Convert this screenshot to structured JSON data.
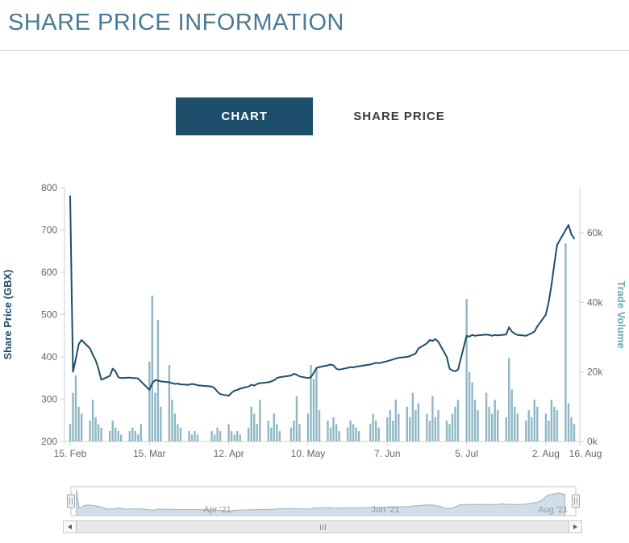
{
  "page": {
    "title": "SHARE PRICE INFORMATION"
  },
  "tabs": [
    {
      "label": "CHART",
      "active": true
    },
    {
      "label": "SHARE PRICE",
      "active": false
    }
  ],
  "colors": {
    "title": "#4a7a96",
    "accent_navy": "#1d4e6c",
    "bar_teal": "#8fb8c4",
    "axis_gray": "#cbd0d4",
    "tick_text": "#666666"
  },
  "chart_data": {
    "type": "line+bar",
    "title": "",
    "x_axis": {
      "range": [
        "2021-02-13",
        "2021-08-14"
      ],
      "ticks": [
        {
          "label": "15. Feb",
          "date": "2021-02-15"
        },
        {
          "label": "15. Mar",
          "date": "2021-03-15"
        },
        {
          "label": "12. Apr",
          "date": "2021-04-12"
        },
        {
          "label": "10. May",
          "date": "2021-05-10"
        },
        {
          "label": "7. Jun",
          "date": "2021-06-07"
        },
        {
          "label": "5. Jul",
          "date": "2021-07-05"
        },
        {
          "label": "2. Aug",
          "date": "2021-08-02"
        },
        {
          "label": "16. Aug",
          "date": "2021-08-16"
        }
      ]
    },
    "y_axis_left": {
      "title": "Share Price (GBX)",
      "min": 200,
      "max": 800,
      "ticks": [
        200,
        300,
        400,
        500,
        600,
        700,
        800
      ],
      "color": "#1d4e6c"
    },
    "y_axis_right": {
      "title": "Trade Volume",
      "min": 0,
      "max": 73,
      "ticks": [
        {
          "label": "0k",
          "value": 0
        },
        {
          "label": "20k",
          "value": 20
        },
        {
          "label": "40k",
          "value": 40
        },
        {
          "label": "60k",
          "value": 60
        }
      ],
      "color": "#6fa7b8"
    },
    "dates": [
      "2021-02-15",
      "2021-02-16",
      "2021-02-17",
      "2021-02-18",
      "2021-02-19",
      "2021-02-22",
      "2021-02-23",
      "2021-02-24",
      "2021-02-25",
      "2021-02-26",
      "2021-03-01",
      "2021-03-02",
      "2021-03-03",
      "2021-03-04",
      "2021-03-05",
      "2021-03-08",
      "2021-03-09",
      "2021-03-10",
      "2021-03-11",
      "2021-03-12",
      "2021-03-15",
      "2021-03-16",
      "2021-03-17",
      "2021-03-18",
      "2021-03-19",
      "2021-03-22",
      "2021-03-23",
      "2021-03-24",
      "2021-03-25",
      "2021-03-26",
      "2021-03-29",
      "2021-03-30",
      "2021-03-31",
      "2021-04-01",
      "2021-04-06",
      "2021-04-07",
      "2021-04-08",
      "2021-04-09",
      "2021-04-12",
      "2021-04-13",
      "2021-04-14",
      "2021-04-15",
      "2021-04-16",
      "2021-04-19",
      "2021-04-20",
      "2021-04-21",
      "2021-04-22",
      "2021-04-23",
      "2021-04-26",
      "2021-04-27",
      "2021-04-28",
      "2021-04-29",
      "2021-04-30",
      "2021-05-04",
      "2021-05-05",
      "2021-05-06",
      "2021-05-07",
      "2021-05-10",
      "2021-05-11",
      "2021-05-12",
      "2021-05-13",
      "2021-05-14",
      "2021-05-17",
      "2021-05-18",
      "2021-05-19",
      "2021-05-20",
      "2021-05-21",
      "2021-05-24",
      "2021-05-25",
      "2021-05-26",
      "2021-05-27",
      "2021-05-28",
      "2021-06-01",
      "2021-06-02",
      "2021-06-03",
      "2021-06-04",
      "2021-06-07",
      "2021-06-08",
      "2021-06-09",
      "2021-06-10",
      "2021-06-11",
      "2021-06-14",
      "2021-06-15",
      "2021-06-16",
      "2021-06-17",
      "2021-06-18",
      "2021-06-21",
      "2021-06-22",
      "2021-06-23",
      "2021-06-24",
      "2021-06-25",
      "2021-06-28",
      "2021-06-29",
      "2021-06-30",
      "2021-07-01",
      "2021-07-02",
      "2021-07-05",
      "2021-07-06",
      "2021-07-07",
      "2021-07-08",
      "2021-07-09",
      "2021-07-12",
      "2021-07-13",
      "2021-07-14",
      "2021-07-15",
      "2021-07-16",
      "2021-07-19",
      "2021-07-20",
      "2021-07-21",
      "2021-07-22",
      "2021-07-23",
      "2021-07-26",
      "2021-07-27",
      "2021-07-28",
      "2021-07-29",
      "2021-07-30",
      "2021-08-02",
      "2021-08-03",
      "2021-08-04",
      "2021-08-05",
      "2021-08-06",
      "2021-08-09",
      "2021-08-10",
      "2021-08-11",
      "2021-08-12"
    ],
    "series": [
      {
        "name": "Share Price (GBX)",
        "type": "line",
        "color": "#1d4e6c",
        "values": [
          780,
          365,
          395,
          430,
          440,
          420,
          405,
          392,
          372,
          346,
          355,
          372,
          366,
          352,
          350,
          351,
          350,
          350,
          349,
          342,
          322,
          338,
          345,
          344,
          342,
          340,
          338,
          336,
          337,
          335,
          334,
          336,
          335,
          333,
          330,
          326,
          318,
          312,
          308,
          315,
          320,
          322,
          325,
          330,
          334,
          332,
          336,
          338,
          340,
          342,
          345,
          350,
          352,
          356,
          360,
          358,
          354,
          350,
          352,
          362,
          374,
          376,
          380,
          382,
          380,
          372,
          370,
          374,
          376,
          375,
          377,
          378,
          382,
          384,
          386,
          385,
          390,
          392,
          394,
          396,
          398,
          400,
          402,
          405,
          408,
          420,
          432,
          440,
          438,
          442,
          436,
          400,
          372,
          368,
          366,
          370,
          450,
          448,
          452,
          450,
          451,
          453,
          452,
          450,
          452,
          451,
          453,
          470,
          460,
          455,
          452,
          450,
          453,
          456,
          460,
          472,
          500,
          530,
          570,
          620,
          665,
          700,
          712,
          690,
          680
        ]
      },
      {
        "name": "Trade Volume",
        "type": "column",
        "color": "#8fb8c4",
        "unit": "k",
        "values": [
          5,
          14,
          19,
          10,
          8,
          6,
          12,
          7,
          5,
          4,
          3,
          6,
          4,
          3,
          2,
          3,
          4,
          3,
          2,
          5,
          23,
          42,
          14,
          35,
          10,
          22,
          12,
          8,
          5,
          4,
          3,
          2,
          3,
          2,
          3,
          2,
          4,
          3,
          5,
          3,
          2,
          3,
          2,
          4,
          10,
          8,
          5,
          12,
          6,
          4,
          8,
          5,
          3,
          4,
          6,
          13,
          5,
          8,
          22,
          18,
          21,
          9,
          6,
          4,
          7,
          5,
          3,
          4,
          6,
          5,
          4,
          3,
          5,
          8,
          6,
          4,
          7,
          9,
          6,
          12,
          8,
          10,
          7,
          14,
          9,
          11,
          8,
          6,
          13,
          7,
          9,
          6,
          5,
          8,
          10,
          12,
          41,
          20,
          17,
          12,
          9,
          14,
          10,
          8,
          12,
          9,
          7,
          24,
          15,
          10,
          8,
          6,
          9,
          7,
          12,
          10,
          8,
          6,
          12,
          10,
          9,
          57,
          11,
          7,
          5
        ]
      }
    ]
  },
  "navigator": {
    "range": [
      "2021-02-13",
      "2021-08-16"
    ],
    "labels": [
      {
        "text": "Apr '21",
        "fx": 0.29
      },
      {
        "text": "Jun '21",
        "fx": 0.623
      },
      {
        "text": "Aug '21",
        "fx": 0.955
      }
    ]
  },
  "scrollbar": {
    "grip": "|||"
  }
}
